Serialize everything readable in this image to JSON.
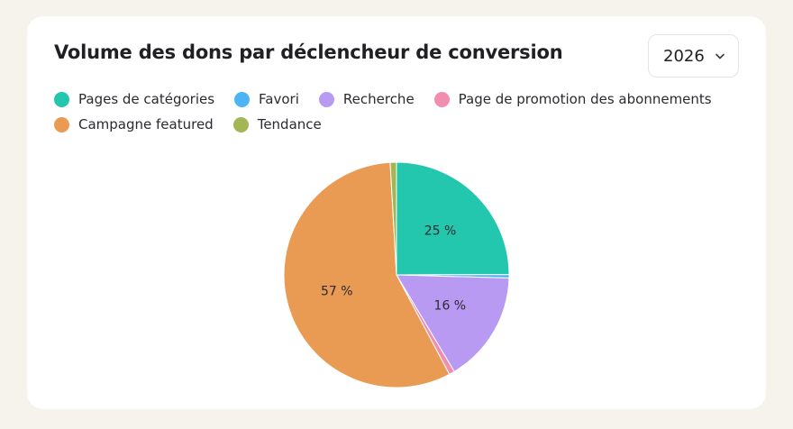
{
  "header": {
    "title": "Volume des dons par déclencheur de conversion",
    "year_value": "2026"
  },
  "colors": {
    "background": "#f6f2ec",
    "card": "#ffffff"
  },
  "chart_data": {
    "type": "pie",
    "title": "Volume des dons par déclencheur de conversion",
    "legend_placement": "top-left",
    "slices": [
      {
        "name": "Pages de catégories",
        "value": 25,
        "color": "#22c7ae",
        "label": "25 %"
      },
      {
        "name": "Favori",
        "value": 0.5,
        "color": "#4cb3f5",
        "label": ""
      },
      {
        "name": "Recherche",
        "value": 16,
        "color": "#b99af3",
        "label": "16 %"
      },
      {
        "name": "Page de promotion des abonnements",
        "value": 0.8,
        "color": "#f28db0",
        "label": ""
      },
      {
        "name": "Campagne featured",
        "value": 57,
        "color": "#e99b53",
        "label": "57 %"
      },
      {
        "name": "Tendance",
        "value": 0.9,
        "color": "#a3b655",
        "label": ""
      }
    ],
    "legend_rows": [
      [
        0,
        1,
        2,
        3
      ],
      [
        4,
        5
      ]
    ]
  }
}
